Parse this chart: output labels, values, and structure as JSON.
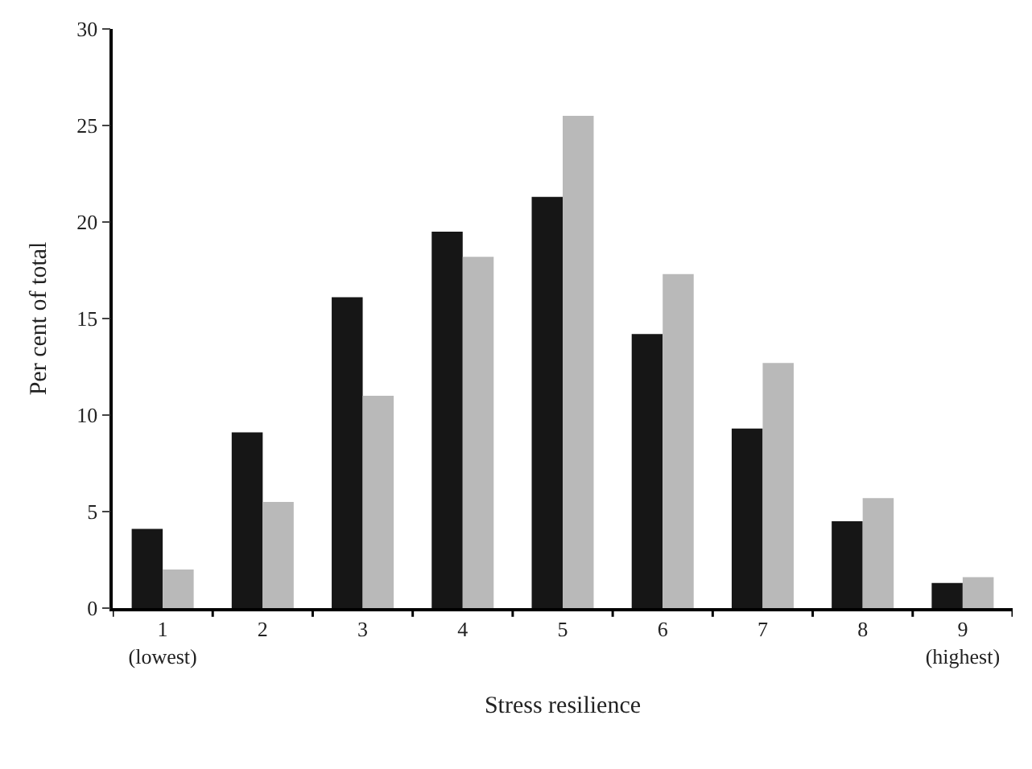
{
  "chart_data": {
    "type": "bar",
    "xlabel": "Stress resilience",
    "ylabel": "Per cent of total",
    "categories": [
      "1\n(lowest)",
      "2",
      "3",
      "4",
      "5",
      "6",
      "7",
      "8",
      "9\n(highest)"
    ],
    "series": [
      {
        "color": "#161616",
        "values": [
          4.1,
          9.1,
          16.1,
          19.5,
          21.3,
          14.2,
          9.3,
          4.5,
          1.3
        ]
      },
      {
        "color": "#b9b9b9",
        "values": [
          2.0,
          5.5,
          11.0,
          18.2,
          25.5,
          17.3,
          12.7,
          5.7,
          1.6
        ]
      }
    ],
    "ylim": [
      0,
      30
    ],
    "yticks": [
      0,
      5,
      10,
      15,
      20,
      25,
      30
    ]
  }
}
